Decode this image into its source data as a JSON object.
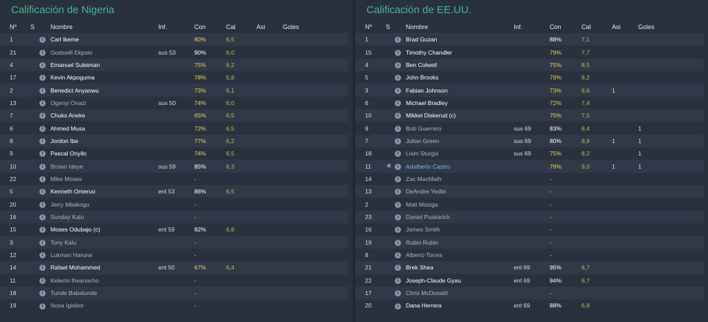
{
  "teams": [
    {
      "title": "Calificación de Nigeria",
      "headers": {
        "num": "Nº",
        "s": "S",
        "name": "Nombre",
        "inf": "Inf.",
        "con": "Con",
        "cal": "Cal",
        "asi": "Asi",
        "goles": "Goles"
      },
      "players": [
        {
          "num": "1",
          "s": "",
          "name": "Carl Ikeme",
          "style": "b",
          "inf": "",
          "con": "80%",
          "con_style": "y",
          "cal": "6,5",
          "asi": "",
          "goles": ""
        },
        {
          "num": "21",
          "s": "",
          "name": "Godswill Ekpolo",
          "style": "d",
          "inf": "sus 53",
          "con": "90%",
          "con_style": "w",
          "cal": "6,0",
          "asi": "",
          "goles": ""
        },
        {
          "num": "4",
          "s": "",
          "name": "Emanuel Suleiman",
          "style": "b",
          "inf": "",
          "con": "75%",
          "con_style": "y",
          "cal": "6,2",
          "asi": "",
          "goles": ""
        },
        {
          "num": "17",
          "s": "",
          "name": "Kevin Akpoguma",
          "style": "b",
          "inf": "",
          "con": "78%",
          "con_style": "y",
          "cal": "5,8",
          "asi": "",
          "goles": ""
        },
        {
          "num": "2",
          "s": "",
          "name": "Benedict Anyanwu",
          "style": "b",
          "inf": "",
          "con": "73%",
          "con_style": "y",
          "cal": "6,1",
          "asi": "",
          "goles": ""
        },
        {
          "num": "13",
          "s": "",
          "name": "Ogenyi Onazi",
          "style": "d",
          "inf": "sus 50",
          "con": "74%",
          "con_style": "y",
          "cal": "6,0",
          "asi": "",
          "goles": ""
        },
        {
          "num": "7",
          "s": "",
          "name": "Chuks Aneke",
          "style": "b",
          "inf": "",
          "con": "65%",
          "con_style": "y",
          "cal": "6,5",
          "asi": "",
          "goles": ""
        },
        {
          "num": "6",
          "s": "",
          "name": "Ahmed Musa",
          "style": "b",
          "inf": "",
          "con": "72%",
          "con_style": "y",
          "cal": "6,5",
          "asi": "",
          "goles": ""
        },
        {
          "num": "8",
          "s": "",
          "name": "Jordon Ibe",
          "style": "b",
          "inf": "",
          "con": "77%",
          "con_style": "y",
          "cal": "6,2",
          "asi": "",
          "goles": ""
        },
        {
          "num": "9",
          "s": "",
          "name": "Pascal Onyilo",
          "style": "b",
          "inf": "",
          "con": "74%",
          "con_style": "y",
          "cal": "6,5",
          "asi": "",
          "goles": ""
        },
        {
          "num": "10",
          "s": "",
          "name": "Brown Ideye",
          "style": "d",
          "inf": "sus 59",
          "con": "85%",
          "con_style": "w",
          "cal": "6,3",
          "asi": "",
          "goles": ""
        },
        {
          "num": "22",
          "s": "",
          "name": "Mike Moses",
          "style": "d",
          "inf": "",
          "con": "-",
          "con_style": "dash",
          "cal": "",
          "asi": "",
          "goles": ""
        },
        {
          "num": "5",
          "s": "",
          "name": "Kenneth Omeruo",
          "style": "b",
          "inf": "ent 53",
          "con": "86%",
          "con_style": "w",
          "cal": "6,5",
          "asi": "",
          "goles": ""
        },
        {
          "num": "20",
          "s": "",
          "name": "Jerry Mbakogu",
          "style": "d",
          "inf": "",
          "con": "-",
          "con_style": "dash",
          "cal": "",
          "asi": "",
          "goles": ""
        },
        {
          "num": "16",
          "s": "",
          "name": "Sunday Kalu",
          "style": "d",
          "inf": "",
          "con": "-",
          "con_style": "dash",
          "cal": "",
          "asi": "",
          "goles": ""
        },
        {
          "num": "15",
          "s": "",
          "name": "Moses Odubajo (c)",
          "style": "b",
          "inf": "ent 59",
          "con": "82%",
          "con_style": "w",
          "cal": "6,8",
          "asi": "",
          "goles": ""
        },
        {
          "num": "3",
          "s": "",
          "name": "Tony Kalu",
          "style": "d",
          "inf": "",
          "con": "-",
          "con_style": "dash",
          "cal": "",
          "asi": "",
          "goles": ""
        },
        {
          "num": "12",
          "s": "",
          "name": "Lukman Haruna",
          "style": "d",
          "inf": "",
          "con": "-",
          "con_style": "dash",
          "cal": "",
          "asi": "",
          "goles": ""
        },
        {
          "num": "14",
          "s": "",
          "name": "Rafael Mohammed",
          "style": "b",
          "inf": "ent 50",
          "con": "67%",
          "con_style": "y",
          "cal": "6,4",
          "asi": "",
          "goles": ""
        },
        {
          "num": "11",
          "s": "",
          "name": "Kelechi Iheanacho",
          "style": "d",
          "inf": "",
          "con": "-",
          "con_style": "dash",
          "cal": "",
          "asi": "",
          "goles": ""
        },
        {
          "num": "18",
          "s": "",
          "name": "Tunde Babatunde",
          "style": "d",
          "inf": "",
          "con": "-",
          "con_style": "dash",
          "cal": "",
          "asi": "",
          "goles": ""
        },
        {
          "num": "19",
          "s": "",
          "name": "Nosa Igiebor",
          "style": "d",
          "inf": "",
          "con": "-",
          "con_style": "dash",
          "cal": "",
          "asi": "",
          "goles": ""
        }
      ]
    },
    {
      "title": "Calificación de EE.UU.",
      "headers": {
        "num": "Nº",
        "s": "S",
        "name": "Nombre",
        "inf": "Inf.",
        "con": "Con",
        "cal": "Cal",
        "asi": "Asi",
        "goles": "Goles"
      },
      "players": [
        {
          "num": "1",
          "s": "",
          "name": "Brad Guzan",
          "style": "b",
          "inf": "",
          "con": "88%",
          "con_style": "w",
          "cal": "7,1",
          "asi": "",
          "goles": ""
        },
        {
          "num": "15",
          "s": "",
          "name": "Timothy Chandler",
          "style": "b",
          "inf": "",
          "con": "79%",
          "con_style": "y",
          "cal": "7,7",
          "asi": "",
          "goles": ""
        },
        {
          "num": "4",
          "s": "",
          "name": "Ben Colwell",
          "style": "b",
          "inf": "",
          "con": "75%",
          "con_style": "y",
          "cal": "8,5",
          "asi": "",
          "goles": ""
        },
        {
          "num": "5",
          "s": "",
          "name": "John Brooks",
          "style": "b",
          "inf": "",
          "con": "79%",
          "con_style": "y",
          "cal": "8,2",
          "asi": "",
          "goles": ""
        },
        {
          "num": "3",
          "s": "",
          "name": "Fabian Johnson",
          "style": "b",
          "inf": "",
          "con": "73%",
          "con_style": "y",
          "cal": "8,6",
          "asi": "1",
          "goles": ""
        },
        {
          "num": "6",
          "s": "",
          "name": "Michael Bradley",
          "style": "b",
          "inf": "",
          "con": "72%",
          "con_style": "y",
          "cal": "7,4",
          "asi": "",
          "goles": ""
        },
        {
          "num": "10",
          "s": "",
          "name": "Mikkel Diskerud (c)",
          "style": "b",
          "inf": "",
          "con": "75%",
          "con_style": "y",
          "cal": "7,5",
          "asi": "",
          "goles": ""
        },
        {
          "num": "9",
          "s": "",
          "name": "Bob Guerrero",
          "style": "d",
          "inf": "sus 69",
          "con": "83%",
          "con_style": "w",
          "cal": "8,4",
          "asi": "",
          "goles": "1"
        },
        {
          "num": "7",
          "s": "",
          "name": "Julian Green",
          "style": "d",
          "inf": "sus 69",
          "con": "80%",
          "con_style": "w",
          "cal": "8,9",
          "asi": "1",
          "goles": "1"
        },
        {
          "num": "18",
          "s": "",
          "name": "Liam Sturgis",
          "style": "d",
          "inf": "sus 69",
          "con": "75%",
          "con_style": "y",
          "cal": "8,2",
          "asi": "",
          "goles": "1"
        },
        {
          "num": "11",
          "s": "★",
          "name": "Adalberto Castro",
          "style": "star",
          "inf": "",
          "con": "78%",
          "con_style": "y",
          "cal": "9,0",
          "asi": "1",
          "goles": "1"
        },
        {
          "num": "14",
          "s": "",
          "name": "Zac MacMath",
          "style": "d",
          "inf": "",
          "con": "-",
          "con_style": "dash",
          "cal": "",
          "asi": "",
          "goles": ""
        },
        {
          "num": "13",
          "s": "",
          "name": "DeAndre Yedlin",
          "style": "d",
          "inf": "",
          "con": "-",
          "con_style": "dash",
          "cal": "",
          "asi": "",
          "goles": ""
        },
        {
          "num": "2",
          "s": "",
          "name": "Matt Miazga",
          "style": "d",
          "inf": "",
          "con": "-",
          "con_style": "dash",
          "cal": "",
          "asi": "",
          "goles": ""
        },
        {
          "num": "23",
          "s": "",
          "name": "Daniel Puskarich",
          "style": "d",
          "inf": "",
          "con": "-",
          "con_style": "dash",
          "cal": "",
          "asi": "",
          "goles": ""
        },
        {
          "num": "16",
          "s": "",
          "name": "James Smith",
          "style": "d",
          "inf": "",
          "con": "-",
          "con_style": "dash",
          "cal": "",
          "asi": "",
          "goles": ""
        },
        {
          "num": "19",
          "s": "",
          "name": "Rubio Rubin",
          "style": "d",
          "inf": "",
          "con": "-",
          "con_style": "dash",
          "cal": "",
          "asi": "",
          "goles": ""
        },
        {
          "num": "8",
          "s": "",
          "name": "Alberto Torres",
          "style": "d",
          "inf": "",
          "con": "-",
          "con_style": "dash",
          "cal": "",
          "asi": "",
          "goles": ""
        },
        {
          "num": "21",
          "s": "",
          "name": "Brek Shea",
          "style": "b",
          "inf": "ent 69",
          "con": "95%",
          "con_style": "w",
          "cal": "6,7",
          "asi": "",
          "goles": ""
        },
        {
          "num": "22",
          "s": "",
          "name": "Joseph-Claude Gyau",
          "style": "b",
          "inf": "ent 69",
          "con": "94%",
          "con_style": "w",
          "cal": "6,7",
          "asi": "",
          "goles": ""
        },
        {
          "num": "17",
          "s": "",
          "name": "Chris McDonald",
          "style": "d",
          "inf": "",
          "con": "-",
          "con_style": "dash",
          "cal": "",
          "asi": "",
          "goles": ""
        },
        {
          "num": "20",
          "s": "",
          "name": "Dana Herrera",
          "style": "b",
          "inf": "ent 69",
          "con": "88%",
          "con_style": "w",
          "cal": "6,8",
          "asi": "",
          "goles": ""
        }
      ]
    }
  ],
  "icons": {
    "info": "info-icon",
    "star": "star-icon"
  },
  "colors": {
    "title": "#3fb98a",
    "con_high": "#ffffff",
    "con_mid": "#e7d25a",
    "cal": "#8fcf4d",
    "star_name": "#7fb5ec",
    "background": "#2a313e"
  }
}
